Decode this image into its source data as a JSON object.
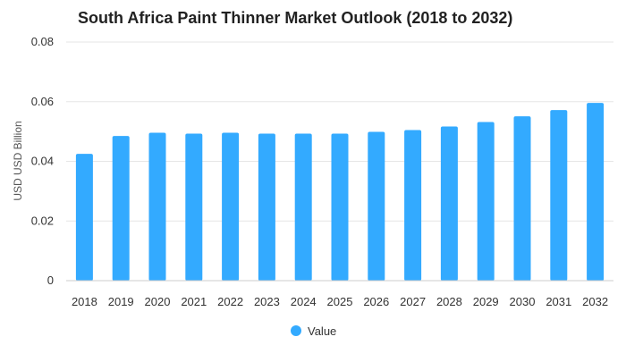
{
  "chart_data": {
    "type": "bar",
    "title": "South Africa Paint Thinner Market Outlook (2018 to 2032)",
    "xlabel": "",
    "ylabel": "USD USD Billion",
    "categories": [
      "2018",
      "2019",
      "2020",
      "2021",
      "2022",
      "2023",
      "2024",
      "2025",
      "2026",
      "2027",
      "2028",
      "2029",
      "2030",
      "2031",
      "2032"
    ],
    "series": [
      {
        "name": "Value",
        "values": [
          0.0425,
          0.0485,
          0.0496,
          0.0493,
          0.0496,
          0.0493,
          0.0493,
          0.0493,
          0.0499,
          0.0505,
          0.0517,
          0.0532,
          0.0551,
          0.0572,
          0.0596
        ],
        "color": "#33aaff"
      }
    ],
    "ylim": [
      0,
      0.08
    ],
    "yticks": [
      "0",
      "0.02",
      "0.04",
      "0.06",
      "0.08"
    ],
    "ytick_values": [
      0,
      0.02,
      0.04,
      0.06,
      0.08
    ],
    "grid": true,
    "legend_position": "bottom-center"
  }
}
